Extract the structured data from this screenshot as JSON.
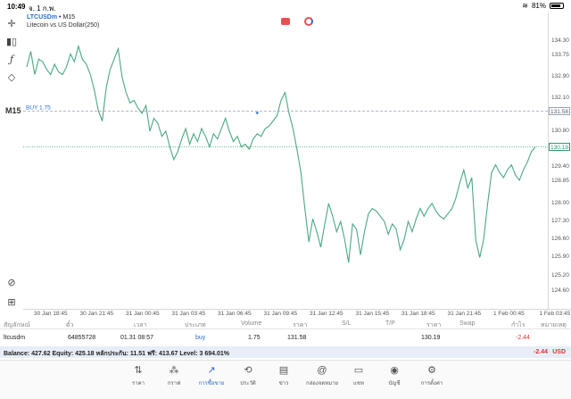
{
  "status": {
    "time": "10:49",
    "date": "จ. 1 ก.พ.",
    "battery": "81%"
  },
  "chart": {
    "symbol": "LTCUSDm",
    "timeframe_sep": "• M15",
    "description": "Litecoin vs US Dollar(250)",
    "timeframe": "M15",
    "buy_label": "BUY 1.75",
    "buy_price": "131.58",
    "bid_price": "130.19",
    "price_levels": [
      "133.60",
      "133.20",
      "132.80",
      "132.40",
      "132.00",
      "131.60",
      "131.20",
      "130.80",
      "130.40",
      "130.00",
      "129.60",
      "129.20",
      "128.80",
      "128.40",
      "128.00",
      "127.60",
      "127.20",
      "126.80",
      "126.40",
      "126.00",
      "125.60",
      "125.20",
      "124.80",
      "124.40"
    ],
    "price_labels_shown": [
      "134.30",
      "133.75",
      "132.90",
      "132.10",
      "131.58",
      "130.80",
      "130.19",
      "129.40",
      "128.85",
      "128.00",
      "127.30",
      "126.60",
      "125.90",
      "125.20",
      "124.60"
    ],
    "time_labels": [
      "30 Jan 18:45",
      "30 Jan 21:45",
      "31 Jan 00:45",
      "31 Jan 03:45",
      "31 Jan 06:45",
      "31 Jan 09:45",
      "31 Jan 12:45",
      "31 Jan 15:45",
      "31 Jan 18:45",
      "31 Jan 21:45",
      "1 Feb 00:45",
      "1 Feb 03:45"
    ],
    "series": [
      133.3,
      133.9,
      133.0,
      133.6,
      133.5,
      133.2,
      133.0,
      133.4,
      133.1,
      133.0,
      133.3,
      133.8,
      133.5,
      134.1,
      133.6,
      133.4,
      133.0,
      132.4,
      131.6,
      131.2,
      132.5,
      133.2,
      133.6,
      134.0,
      132.9,
      132.3,
      131.9,
      132.0,
      131.7,
      131.5,
      131.8,
      130.8,
      131.3,
      131.1,
      130.6,
      130.8,
      130.2,
      129.7,
      130.0,
      130.5,
      130.9,
      130.3,
      130.7,
      130.4,
      130.9,
      130.6,
      130.2,
      130.7,
      130.5,
      130.9,
      131.3,
      130.8,
      130.4,
      130.6,
      130.2,
      130.3,
      130.1,
      130.5,
      130.7,
      130.6,
      130.9,
      131.0,
      131.2,
      131.4,
      132.0,
      132.3,
      131.5,
      130.9,
      130.1,
      129.2,
      127.8,
      126.5,
      127.4,
      126.9,
      126.3,
      127.2,
      128.0,
      127.5,
      126.9,
      127.3,
      126.6,
      125.7,
      127.2,
      127.0,
      126.0,
      126.9,
      127.6,
      127.8,
      127.7,
      127.5,
      127.3,
      126.8,
      127.2,
      127.0,
      126.2,
      126.6,
      127.3,
      126.9,
      127.4,
      127.8,
      127.5,
      127.8,
      128.0,
      127.7,
      127.5,
      127.4,
      127.6,
      127.8,
      128.2,
      128.8,
      129.3,
      128.6,
      129.0,
      126.6,
      125.9,
      126.6,
      128.0,
      129.2,
      129.5,
      129.2,
      129.0,
      129.3,
      129.5,
      129.1,
      128.9,
      129.3,
      129.6,
      130.0,
      130.19
    ]
  },
  "positions": {
    "headers": [
      "สัญลักษณ์",
      "ตั๋ว",
      "เวลา",
      "ประเภท",
      "Volume",
      "ราคา",
      "S/L",
      "T/P",
      "ราคา",
      "Swap",
      "กำไร",
      "หมายเหตุ"
    ],
    "rows": [
      {
        "symbol": "ltcusdm",
        "ticket": "64855728",
        "time": "01.31 08:57",
        "type": "buy",
        "volume": "1.75",
        "open_price": "131.58",
        "current_price": "130.19",
        "profit": "-2.44"
      }
    ]
  },
  "balance": {
    "text": "Balance: 427.62 Equity: 425.18 หลักประกัน: 11.51 ฟรี: 413.67 Level: 3 694.01%",
    "pl": "-2.44",
    "currency": "USD"
  },
  "nav": [
    {
      "label": "ราคา",
      "icon": "arrows-updown-icon"
    },
    {
      "label": "กราฟ",
      "icon": "chart-icon"
    },
    {
      "label": "การซื้อขาย",
      "icon": "trade-icon"
    },
    {
      "label": "ประวัติ",
      "icon": "history-icon"
    },
    {
      "label": "ข่าว",
      "icon": "news-icon"
    },
    {
      "label": "กล่องจดหมาย",
      "icon": "mailbox-icon"
    },
    {
      "label": "แชท",
      "icon": "chat-icon"
    },
    {
      "label": "บัญชี",
      "icon": "account-icon"
    },
    {
      "label": "การตั้งค่า",
      "icon": "settings-icon"
    }
  ],
  "colors": {
    "line": "#4aa882",
    "buy_line": "#9aa4b0",
    "bid_line": "#2a9d6a",
    "accent": "#2a6fcf",
    "loss": "#e03030"
  }
}
